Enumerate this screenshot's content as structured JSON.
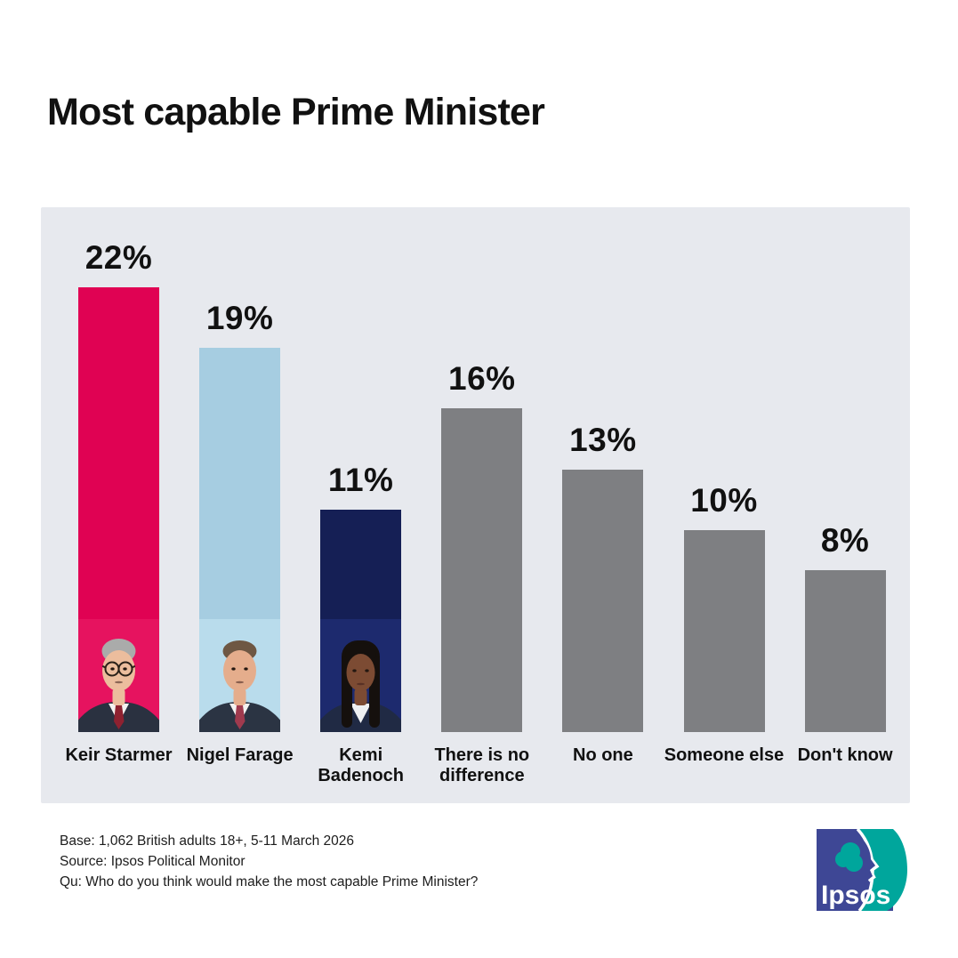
{
  "page": {
    "title": "Most capable Prime Minister"
  },
  "chart_data": {
    "type": "bar",
    "title": "Most capable Prime Minister",
    "categories": [
      "Keir Starmer",
      "Nigel Farage",
      "Kemi Badenoch",
      "There is no difference",
      "No one",
      "Someone else",
      "Don't know"
    ],
    "values": [
      22,
      19,
      11,
      16,
      13,
      10,
      8
    ],
    "value_labels": [
      "22%",
      "19%",
      "11%",
      "16%",
      "13%",
      "10%",
      "8%"
    ],
    "unit": "%",
    "ylim": [
      0,
      22
    ],
    "grid": false,
    "legend": "none",
    "bar_colors": [
      "#e00253",
      "#a6cde1",
      "#151f55",
      "#7e7f82",
      "#7e7f82",
      "#7e7f82",
      "#7e7f82"
    ],
    "photos": [
      "keir-starmer-photo",
      "nigel-farage-photo",
      "kemi-badenoch-photo",
      null,
      null,
      null,
      null
    ]
  },
  "footer": {
    "base": "Base: 1,062 British adults 18+, 5-11 March 2026",
    "source": "Source: Ipsos Political Monitor",
    "question": "Qu: Who do you think would make the most capable Prime Minister?"
  },
  "logo": {
    "label": "Ipsos",
    "blue": "#3e4795",
    "teal": "#00a69c"
  },
  "colors": {
    "page_bg": "#ffffff",
    "panel_bg": "#e7e9ee",
    "text": "#101010"
  }
}
